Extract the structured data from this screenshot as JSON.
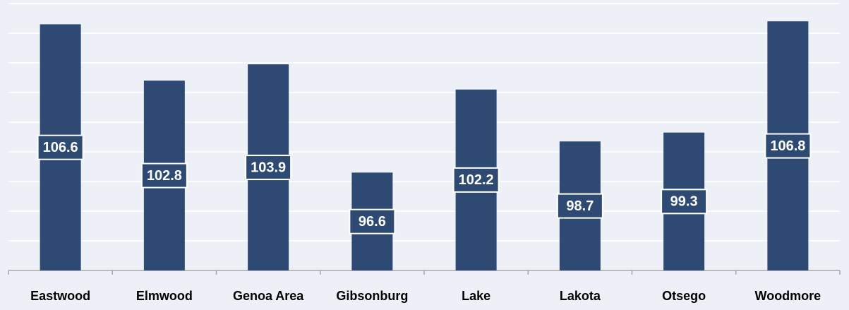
{
  "chart_data": {
    "type": "bar",
    "categories": [
      "Eastwood",
      "Elmwood",
      "Genoa Area",
      "Gibsonburg",
      "Lake",
      "Lakota",
      "Otsego",
      "Woodmore"
    ],
    "values": [
      106.6,
      102.8,
      103.9,
      96.6,
      102.2,
      98.7,
      99.3,
      106.8
    ],
    "color": "#2e4a72",
    "ylim": [
      90,
      108
    ],
    "yticks": [
      90,
      92,
      94,
      96,
      98,
      100,
      102,
      104,
      106,
      108
    ],
    "grid": true
  }
}
